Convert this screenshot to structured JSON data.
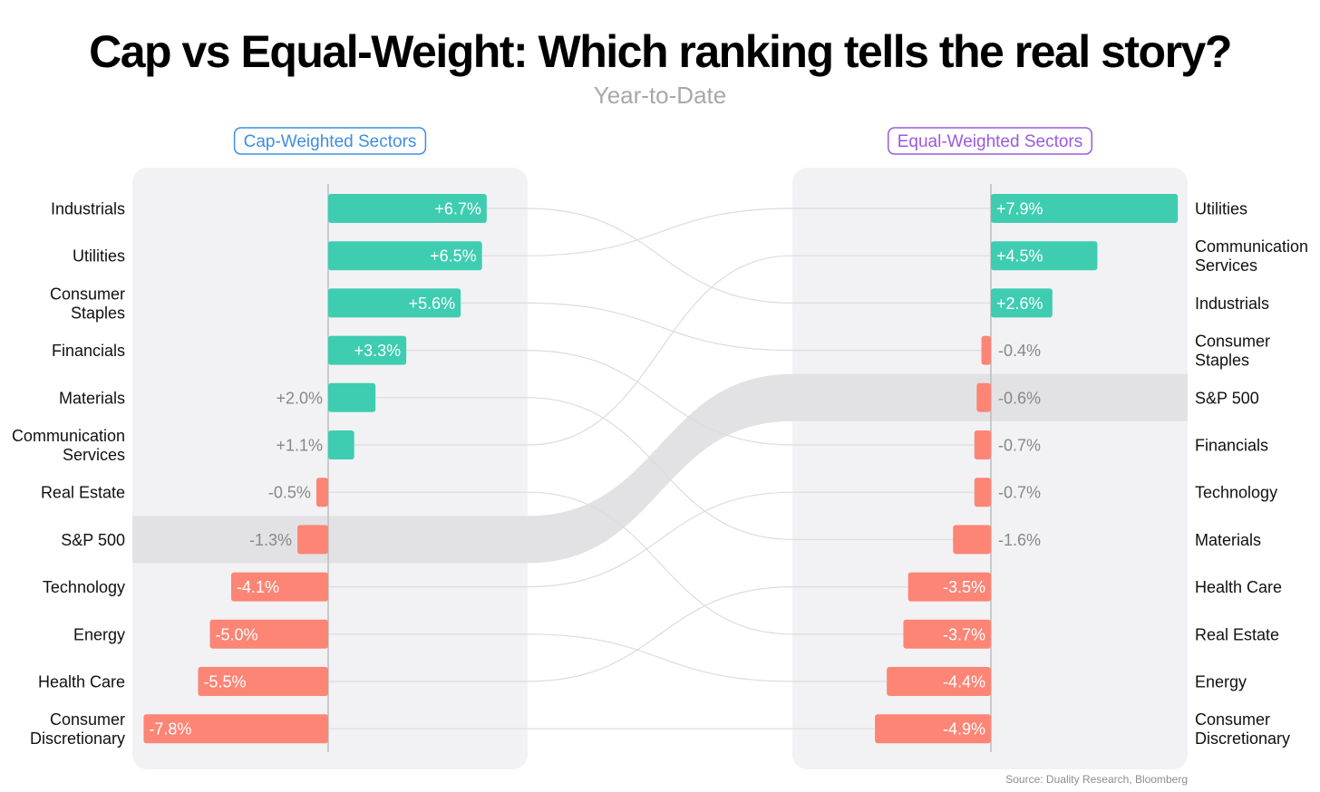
{
  "title": "Cap vs Equal-Weight: Which ranking tells the real story?",
  "subtitle": "Year-to-Date",
  "source": "Source: Duality Research, Bloomberg",
  "colors": {
    "positive": "#3ecdb0",
    "negative": "#fc8576",
    "highlight_band": "#e2e2e5",
    "panel": "#f2f2f5",
    "cap_accent": "#3f8de0",
    "equal_accent": "#9b59e0",
    "connector": "#dcdcdc",
    "label_inside": "#ffffff",
    "label_outside": "#888888"
  },
  "chart_data": [
    {
      "type": "bar",
      "orientation": "horizontal",
      "title": "Cap-Weighted Sectors",
      "highlight": "S&P 500",
      "categories": [
        "Industrials",
        "Utilities",
        "Consumer Staples",
        "Financials",
        "Materials",
        "Communication Services",
        "Real Estate",
        "S&P 500",
        "Technology",
        "Energy",
        "Health Care",
        "Consumer Discretionary"
      ],
      "category_lines": [
        [
          "Industrials"
        ],
        [
          "Utilities"
        ],
        [
          "Consumer",
          "Staples"
        ],
        [
          "Financials"
        ],
        [
          "Materials"
        ],
        [
          "Communication",
          "Services"
        ],
        [
          "Real Estate"
        ],
        [
          "S&P 500"
        ],
        [
          "Technology"
        ],
        [
          "Energy"
        ],
        [
          "Health Care"
        ],
        [
          "Consumer",
          "Discretionary"
        ]
      ],
      "values": [
        6.7,
        6.5,
        5.6,
        3.3,
        2.0,
        1.1,
        -0.5,
        -1.3,
        -4.1,
        -5.0,
        -5.5,
        -7.8
      ],
      "labels": [
        "+6.7%",
        "+6.5%",
        "+5.6%",
        "+3.3%",
        "+2.0%",
        "+1.1%",
        "-0.5%",
        "-1.3%",
        "-4.1%",
        "-5.0%",
        "-5.5%",
        "-7.8%"
      ],
      "unit": "%",
      "xlim": [
        -8.0,
        7.1
      ]
    },
    {
      "type": "bar",
      "orientation": "horizontal",
      "title": "Equal-Weighted Sectors",
      "highlight": "S&P 500",
      "categories": [
        "Utilities",
        "Communication Services",
        "Industrials",
        "Consumer Staples",
        "S&P 500",
        "Financials",
        "Technology",
        "Materials",
        "Health Care",
        "Real Estate",
        "Energy",
        "Consumer Discretionary"
      ],
      "category_lines": [
        [
          "Utilities"
        ],
        [
          "Communication",
          "Services"
        ],
        [
          "Industrials"
        ],
        [
          "Consumer",
          "Staples"
        ],
        [
          "S&P 500"
        ],
        [
          "Financials"
        ],
        [
          "Technology"
        ],
        [
          "Materials"
        ],
        [
          "Health Care"
        ],
        [
          "Real Estate"
        ],
        [
          "Energy"
        ],
        [
          "Consumer",
          "Discretionary"
        ]
      ],
      "values": [
        7.9,
        4.5,
        2.6,
        -0.4,
        -0.6,
        -0.7,
        -0.7,
        -1.6,
        -3.5,
        -3.7,
        -4.4,
        -4.9
      ],
      "labels": [
        "+7.9%",
        "+4.5%",
        "+2.6%",
        "-0.4%",
        "-0.6%",
        "-0.7%",
        "-0.7%",
        "-1.6%",
        "-3.5%",
        "-3.7%",
        "-4.4%",
        "-4.9%"
      ],
      "unit": "%",
      "xlim": [
        -8.0,
        7.9
      ]
    }
  ]
}
